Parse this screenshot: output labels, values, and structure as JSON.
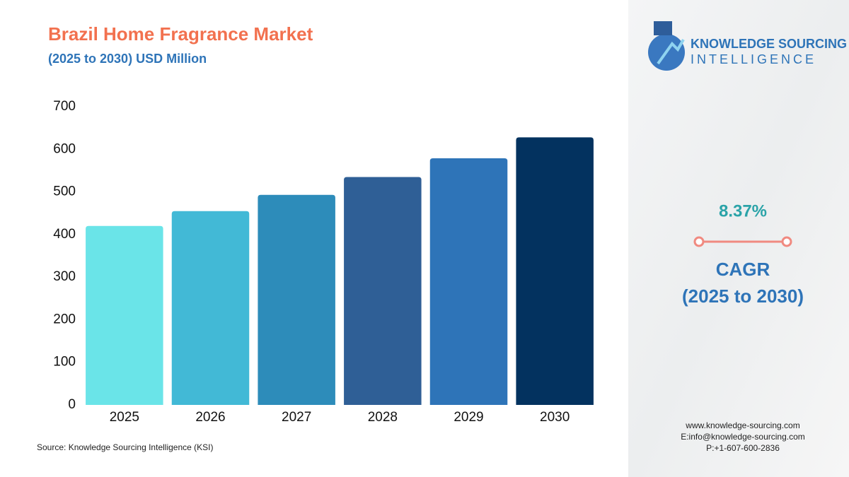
{
  "chart_data": {
    "type": "bar",
    "title": "Brazil Home Fragrance Market",
    "subtitle": "(2025 to 2030) USD Million",
    "categories": [
      "2025",
      "2026",
      "2027",
      "2028",
      "2029",
      "2030"
    ],
    "values": [
      420,
      455,
      493,
      535,
      579,
      628
    ],
    "colors": [
      "#6ae4e8",
      "#42b9d6",
      "#2d8cba",
      "#2f5f96",
      "#2e74b8",
      "#03325f"
    ],
    "ylim": [
      0,
      700
    ],
    "yticks": [
      0,
      100,
      200,
      300,
      400,
      500,
      600,
      700
    ],
    "grid": false,
    "source": "Source: Knowledge Sourcing Intelligence (KSI)"
  },
  "sidebar": {
    "logo_line1": "KNOWLEDGE SOURCING",
    "logo_line2": "INTELLIGENCE",
    "cagr_value": "8.37%",
    "cagr_label": "CAGR",
    "cagr_period": "(2025 to 2030)",
    "contact": [
      "www.knowledge-sourcing.com",
      "E:info@knowledge-sourcing.com",
      "P:+1-607-600-2836"
    ]
  }
}
